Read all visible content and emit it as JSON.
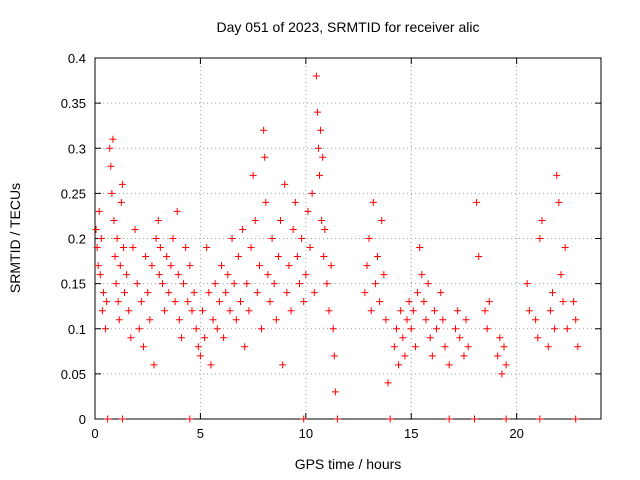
{
  "chart_data": {
    "type": "scatter",
    "title": "Day 051 of 2023, SRMTID for receiver alic",
    "xlabel": "GPS time / hours",
    "ylabel": "SRMTID / TECUs",
    "xlim": [
      0,
      24
    ],
    "ylim": [
      0,
      0.4
    ],
    "xticks": [
      0,
      5,
      10,
      15,
      20
    ],
    "xtick_labels": [
      "0",
      "5",
      "10",
      "15",
      "20"
    ],
    "yticks": [
      0,
      0.05,
      0.1,
      0.15,
      0.2,
      0.25,
      0.3,
      0.35,
      0.4
    ],
    "ytick_labels": [
      "0",
      "0.05",
      "0.1",
      "0.15",
      "0.2",
      "0.25",
      "0.3",
      "0.35",
      "0.4"
    ],
    "grid": true,
    "marker": "plus",
    "series": [
      {
        "name": "SRMTID",
        "color": "#ff0000",
        "points": [
          [
            0.05,
            0.21
          ],
          [
            0.1,
            0.19
          ],
          [
            0.15,
            0.17
          ],
          [
            0.2,
            0.23
          ],
          [
            0.25,
            0.16
          ],
          [
            0.3,
            0.2
          ],
          [
            0.35,
            0.12
          ],
          [
            0.4,
            0.14
          ],
          [
            0.5,
            0.1
          ],
          [
            0.55,
            0.13
          ],
          [
            0.7,
            0.3
          ],
          [
            0.75,
            0.28
          ],
          [
            0.8,
            0.25
          ],
          [
            0.85,
            0.31
          ],
          [
            0.9,
            0.22
          ],
          [
            0.95,
            0.18
          ],
          [
            1.0,
            0.15
          ],
          [
            1.05,
            0.2
          ],
          [
            1.1,
            0.13
          ],
          [
            1.15,
            0.11
          ],
          [
            1.2,
            0.17
          ],
          [
            1.25,
            0.24
          ],
          [
            1.3,
            0.26
          ],
          [
            1.35,
            0.19
          ],
          [
            1.4,
            0.14
          ],
          [
            1.5,
            0.16
          ],
          [
            1.6,
            0.12
          ],
          [
            1.7,
            0.09
          ],
          [
            1.8,
            0.19
          ],
          [
            1.9,
            0.21
          ],
          [
            2.0,
            0.15
          ],
          [
            2.1,
            0.1
          ],
          [
            2.2,
            0.13
          ],
          [
            2.3,
            0.08
          ],
          [
            2.4,
            0.18
          ],
          [
            2.5,
            0.14
          ],
          [
            2.6,
            0.11
          ],
          [
            2.7,
            0.17
          ],
          [
            2.8,
            0.06
          ],
          [
            2.9,
            0.2
          ],
          [
            3.0,
            0.22
          ],
          [
            3.05,
            0.16
          ],
          [
            3.1,
            0.19
          ],
          [
            3.2,
            0.15
          ],
          [
            3.3,
            0.12
          ],
          [
            3.4,
            0.18
          ],
          [
            3.5,
            0.14
          ],
          [
            3.6,
            0.17
          ],
          [
            3.7,
            0.2
          ],
          [
            3.8,
            0.13
          ],
          [
            3.9,
            0.23
          ],
          [
            3.95,
            0.16
          ],
          [
            4.0,
            0.11
          ],
          [
            4.1,
            0.09
          ],
          [
            4.2,
            0.15
          ],
          [
            4.3,
            0.19
          ],
          [
            4.4,
            0.13
          ],
          [
            4.5,
            0.17
          ],
          [
            4.6,
            0.12
          ],
          [
            4.7,
            0.14
          ],
          [
            4.8,
            0.1
          ],
          [
            4.9,
            0.08
          ],
          [
            5.0,
            0.07
          ],
          [
            5.1,
            0.12
          ],
          [
            5.2,
            0.09
          ],
          [
            5.3,
            0.19
          ],
          [
            5.4,
            0.14
          ],
          [
            5.5,
            0.06
          ],
          [
            5.6,
            0.11
          ],
          [
            5.7,
            0.15
          ],
          [
            5.8,
            0.1
          ],
          [
            5.9,
            0.13
          ],
          [
            6.0,
            0.17
          ],
          [
            6.1,
            0.09
          ],
          [
            6.2,
            0.14
          ],
          [
            6.3,
            0.16
          ],
          [
            6.4,
            0.12
          ],
          [
            6.5,
            0.2
          ],
          [
            6.6,
            0.15
          ],
          [
            6.7,
            0.11
          ],
          [
            6.8,
            0.18
          ],
          [
            6.9,
            0.13
          ],
          [
            7.0,
            0.21
          ],
          [
            7.1,
            0.08
          ],
          [
            7.2,
            0.15
          ],
          [
            7.3,
            0.12
          ],
          [
            7.4,
            0.19
          ],
          [
            7.5,
            0.27
          ],
          [
            7.6,
            0.22
          ],
          [
            7.7,
            0.14
          ],
          [
            7.8,
            0.17
          ],
          [
            7.9,
            0.1
          ],
          [
            8.0,
            0.32
          ],
          [
            8.05,
            0.29
          ],
          [
            8.1,
            0.24
          ],
          [
            8.2,
            0.16
          ],
          [
            8.3,
            0.13
          ],
          [
            8.4,
            0.2
          ],
          [
            8.5,
            0.15
          ],
          [
            8.6,
            0.11
          ],
          [
            8.7,
            0.18
          ],
          [
            8.8,
            0.22
          ],
          [
            8.9,
            0.06
          ],
          [
            9.0,
            0.26
          ],
          [
            9.1,
            0.14
          ],
          [
            9.2,
            0.17
          ],
          [
            9.3,
            0.12
          ],
          [
            9.4,
            0.21
          ],
          [
            9.5,
            0.24
          ],
          [
            9.6,
            0.18
          ],
          [
            9.7,
            0.15
          ],
          [
            9.8,
            0.2
          ],
          [
            9.9,
            0.13
          ],
          [
            10.0,
            0.16
          ],
          [
            10.1,
            0.23
          ],
          [
            10.2,
            0.19
          ],
          [
            10.3,
            0.25
          ],
          [
            10.4,
            0.14
          ],
          [
            10.5,
            0.38
          ],
          [
            10.55,
            0.34
          ],
          [
            10.6,
            0.3
          ],
          [
            10.65,
            0.27
          ],
          [
            10.7,
            0.32
          ],
          [
            10.75,
            0.22
          ],
          [
            10.8,
            0.29
          ],
          [
            10.85,
            0.18
          ],
          [
            10.9,
            0.21
          ],
          [
            11.0,
            0.15
          ],
          [
            11.1,
            0.12
          ],
          [
            11.2,
            0.17
          ],
          [
            11.3,
            0.1
          ],
          [
            11.35,
            0.07
          ],
          [
            11.4,
            0.03
          ],
          [
            12.8,
            0.14
          ],
          [
            12.9,
            0.17
          ],
          [
            13.0,
            0.2
          ],
          [
            13.1,
            0.12
          ],
          [
            13.2,
            0.24
          ],
          [
            13.3,
            0.15
          ],
          [
            13.4,
            0.18
          ],
          [
            13.5,
            0.13
          ],
          [
            13.6,
            0.22
          ],
          [
            13.7,
            0.16
          ],
          [
            13.8,
            0.11
          ],
          [
            13.9,
            0.04
          ],
          [
            14.2,
            0.08
          ],
          [
            14.3,
            0.1
          ],
          [
            14.4,
            0.06
          ],
          [
            14.5,
            0.12
          ],
          [
            14.6,
            0.09
          ],
          [
            14.7,
            0.07
          ],
          [
            14.8,
            0.11
          ],
          [
            14.9,
            0.13
          ],
          [
            15.0,
            0.1
          ],
          [
            15.1,
            0.12
          ],
          [
            15.2,
            0.08
          ],
          [
            15.3,
            0.14
          ],
          [
            15.4,
            0.19
          ],
          [
            15.5,
            0.16
          ],
          [
            15.6,
            0.13
          ],
          [
            15.7,
            0.11
          ],
          [
            15.8,
            0.15
          ],
          [
            15.9,
            0.09
          ],
          [
            16.0,
            0.07
          ],
          [
            16.1,
            0.12
          ],
          [
            16.2,
            0.1
          ],
          [
            16.4,
            0.14
          ],
          [
            16.5,
            0.11
          ],
          [
            16.6,
            0.08
          ],
          [
            16.8,
            0.06
          ],
          [
            17.1,
            0.1
          ],
          [
            17.2,
            0.12
          ],
          [
            17.3,
            0.09
          ],
          [
            17.5,
            0.07
          ],
          [
            17.6,
            0.11
          ],
          [
            17.7,
            0.08
          ],
          [
            18.1,
            0.24
          ],
          [
            18.2,
            0.18
          ],
          [
            18.5,
            0.12
          ],
          [
            18.6,
            0.1
          ],
          [
            18.7,
            0.13
          ],
          [
            19.1,
            0.07
          ],
          [
            19.2,
            0.09
          ],
          [
            19.3,
            0.05
          ],
          [
            19.4,
            0.08
          ],
          [
            19.5,
            0.06
          ],
          [
            20.5,
            0.15
          ],
          [
            20.6,
            0.12
          ],
          [
            20.9,
            0.11
          ],
          [
            21.0,
            0.09
          ],
          [
            21.1,
            0.2
          ],
          [
            21.2,
            0.22
          ],
          [
            21.5,
            0.08
          ],
          [
            21.6,
            0.12
          ],
          [
            21.7,
            0.14
          ],
          [
            21.8,
            0.1
          ],
          [
            21.9,
            0.27
          ],
          [
            22.0,
            0.24
          ],
          [
            22.1,
            0.16
          ],
          [
            22.2,
            0.13
          ],
          [
            22.3,
            0.19
          ],
          [
            22.4,
            0.1
          ],
          [
            22.7,
            0.13
          ],
          [
            22.8,
            0.11
          ],
          [
            22.9,
            0.08
          ],
          [
            0.6,
            0.0
          ],
          [
            1.3,
            0.0
          ],
          [
            4.5,
            0.0
          ],
          [
            9.9,
            0.0
          ],
          [
            11.5,
            0.0
          ],
          [
            14.0,
            0.0
          ],
          [
            16.8,
            0.0
          ],
          [
            18.0,
            0.0
          ],
          [
            19.5,
            0.0
          ],
          [
            21.1,
            0.0
          ],
          [
            22.8,
            0.0
          ]
        ]
      }
    ]
  }
}
